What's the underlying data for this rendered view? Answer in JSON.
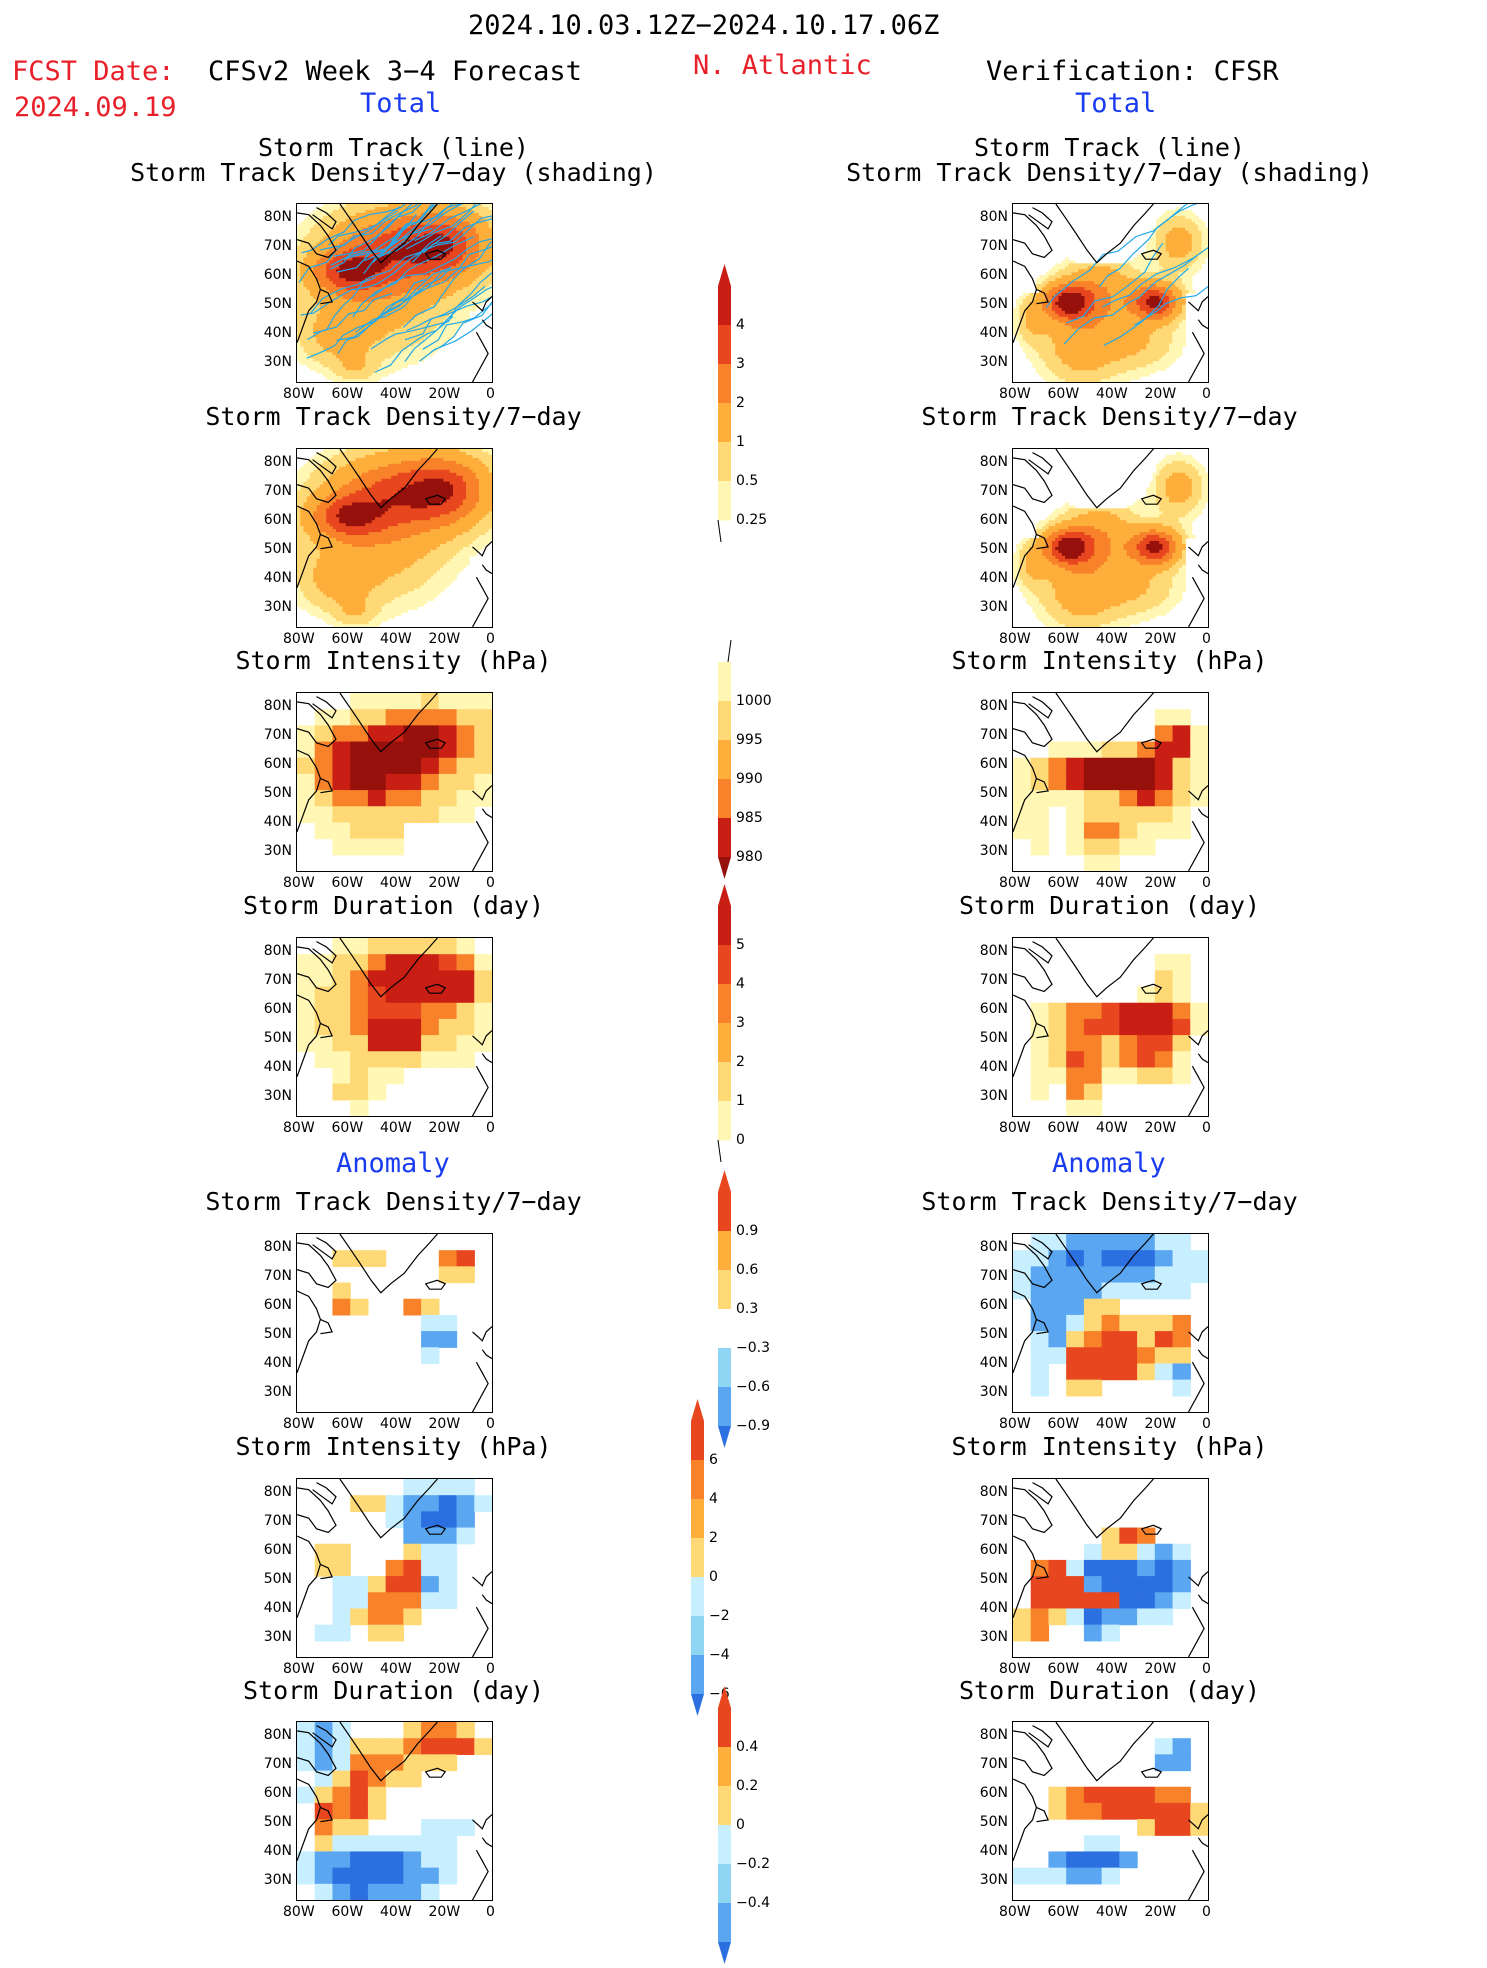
{
  "header": {
    "period": "2024.10.03.12Z−2024.10.17.06Z",
    "fcst_label": "FCST Date:",
    "fcst_date": "2024.09.19",
    "model": "CFSv2 Week 3−4 Forecast",
    "region": "N. Atlantic",
    "verification": "Verification: CFSR"
  },
  "sections": {
    "total": "Total",
    "anomaly": "Anomaly"
  },
  "titles": {
    "track_line": "Storm Track (line)",
    "track_shading": "Storm Track Density/7−day (shading)",
    "density": "Storm Track Density/7−day",
    "intensity": "Storm Intensity (hPa)",
    "duration": "Storm Duration (day)"
  },
  "axes": {
    "lat": [
      "80N",
      "70N",
      "60N",
      "50N",
      "40N",
      "30N"
    ],
    "lon": [
      "80W",
      "60W",
      "40W",
      "20W",
      "0"
    ]
  },
  "colorbars": {
    "density_total": [
      "4",
      "3",
      "2",
      "1",
      "0.5",
      "0.25"
    ],
    "intensity_total": [
      "1000",
      "995",
      "990",
      "985",
      "980"
    ],
    "duration_total": [
      "5",
      "4",
      "3",
      "2",
      "1",
      "0"
    ],
    "density_anom": [
      "0.9",
      "0.6",
      "0.3",
      "−0.3",
      "−0.6",
      "−0.9"
    ],
    "intensity_anom": [
      "6",
      "4",
      "2",
      "0",
      "−2",
      "−4",
      "−6"
    ],
    "duration_anom": [
      "0.4",
      "0.2",
      "0",
      "−0.2",
      "−0.4"
    ]
  },
  "colors": {
    "warm": [
      "#fff7b3",
      "#fed976",
      "#fdae3b",
      "#f8822a",
      "#e8461f",
      "#c81e14",
      "#96100c"
    ],
    "cool": [
      "#c8efff",
      "#8fd6f5",
      "#5aa6f0",
      "#2c6fe0",
      "#1a56d0"
    ],
    "land_line": "#000000",
    "track": "#22a8e8"
  }
}
